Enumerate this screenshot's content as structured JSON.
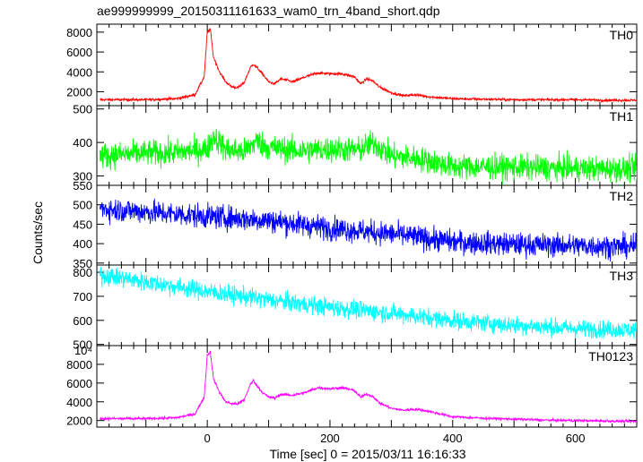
{
  "chart_data": {
    "type": "line",
    "title": "ae999999999_20150311161633_wam0_trn_4band_short.qdp",
    "xlabel": "Time [sec] 0 = 2015/03/11 16:16:33",
    "ylabel": "Counts/sec",
    "xlim": [
      -180,
      700
    ],
    "x_ticks": [
      "0",
      "200",
      "400",
      "600"
    ],
    "panels": [
      {
        "label": "TH0",
        "color": "#ff0000",
        "ylim": [
          600,
          8800
        ],
        "y_ticks": [
          "2000",
          "4000",
          "6000",
          "8000"
        ],
        "noise": 120,
        "series": {
          "name": "TH0",
          "x": [
            -175,
            -100,
            -50,
            -20,
            -5,
            0,
            5,
            10,
            20,
            30,
            40,
            50,
            60,
            70,
            75,
            80,
            90,
            100,
            110,
            120,
            140,
            160,
            180,
            200,
            220,
            240,
            250,
            260,
            270,
            280,
            300,
            320,
            340,
            360,
            380,
            400,
            450,
            500,
            550,
            600,
            650,
            700
          ],
          "y": [
            1200,
            1200,
            1300,
            1700,
            3500,
            8000,
            8300,
            5500,
            4000,
            3000,
            2500,
            2400,
            2900,
            4400,
            4800,
            4500,
            3800,
            3000,
            2800,
            3300,
            3000,
            3500,
            3900,
            3800,
            3800,
            3500,
            2800,
            3300,
            3100,
            2500,
            1900,
            1600,
            1700,
            1500,
            1400,
            1300,
            1250,
            1200,
            1200,
            1200,
            1150,
            1150
          ]
        }
      },
      {
        "label": "TH1",
        "color": "#00ff00",
        "ylim": [
          272,
          510
        ],
        "y_ticks": [
          "300",
          "400",
          "500"
        ],
        "noise": 28,
        "series": {
          "name": "TH1",
          "x": [
            -175,
            -100,
            -50,
            0,
            10,
            30,
            60,
            80,
            100,
            150,
            200,
            250,
            270,
            300,
            350,
            400,
            500,
            600,
            700
          ],
          "y": [
            360,
            368,
            370,
            380,
            420,
            380,
            372,
            405,
            385,
            375,
            380,
            378,
            400,
            360,
            350,
            328,
            326,
            322,
            320
          ]
        }
      },
      {
        "label": "TH2",
        "color": "#0000ff",
        "ylim": [
          345,
          550
        ],
        "y_ticks": [
          "350",
          "400",
          "450",
          "500",
          "550"
        ],
        "noise": 22,
        "series": {
          "name": "TH2",
          "x": [
            -175,
            -100,
            0,
            100,
            200,
            300,
            400,
            500,
            600,
            700
          ],
          "y": [
            490,
            482,
            470,
            460,
            440,
            425,
            405,
            398,
            395,
            392
          ]
        }
      },
      {
        "label": "TH3",
        "color": "#00ffff",
        "ylim": [
          495,
          830
        ],
        "y_ticks": [
          "500",
          "600",
          "700",
          "800"
        ],
        "noise": 28,
        "series": {
          "name": "TH3",
          "x": [
            -175,
            -100,
            0,
            100,
            200,
            300,
            400,
            500,
            600,
            700
          ],
          "y": [
            790,
            760,
            720,
            685,
            655,
            630,
            600,
            580,
            565,
            560
          ]
        }
      },
      {
        "label": "TH0123",
        "color": "#ff00ff",
        "ylim": [
          1300,
          10000
        ],
        "y_ticks": [
          "2000",
          "4000",
          "6000",
          "8000"
        ],
        "y_top_label": "10⁴",
        "noise": 120,
        "series": {
          "name": "TH0123",
          "x": [
            -175,
            -100,
            -50,
            -20,
            -5,
            0,
            5,
            10,
            20,
            30,
            40,
            50,
            60,
            70,
            75,
            80,
            90,
            100,
            110,
            120,
            140,
            160,
            180,
            200,
            220,
            240,
            250,
            260,
            270,
            280,
            300,
            320,
            340,
            360,
            380,
            400,
            450,
            500,
            550,
            600,
            650,
            700
          ],
          "y": [
            2200,
            2200,
            2300,
            2700,
            4500,
            9000,
            9300,
            6500,
            5000,
            4000,
            3800,
            3800,
            4200,
            5800,
            6300,
            5800,
            5000,
            4500,
            4400,
            4800,
            4700,
            5000,
            5500,
            5400,
            5500,
            5200,
            4500,
            4800,
            4600,
            3900,
            3300,
            3100,
            3200,
            3000,
            2700,
            2400,
            2250,
            2150,
            2050,
            2000,
            1950,
            1900
          ]
        }
      }
    ]
  }
}
